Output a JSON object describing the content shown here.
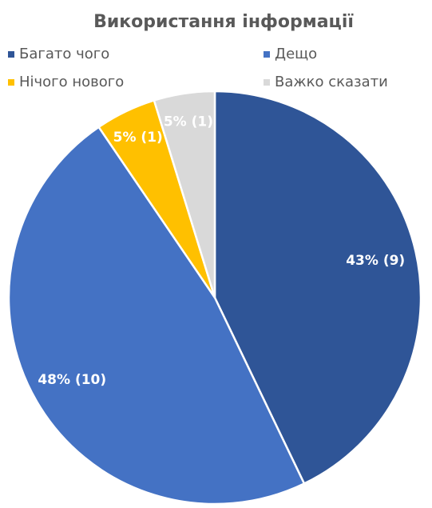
{
  "chart_data": {
    "type": "pie",
    "title": "Використання інформації",
    "categories": [
      "Багато чого",
      "Дещо",
      "Нічого нового",
      "Важко сказати"
    ],
    "values": [
      9,
      10,
      1,
      1
    ],
    "value_labels": [
      "43% (9)",
      "48% (10)",
      "5% (1)",
      "5% (1)"
    ],
    "colors": [
      "#2f5597",
      "#4472c4",
      "#ffc000",
      "#d9d9d9"
    ],
    "legend": "top"
  }
}
